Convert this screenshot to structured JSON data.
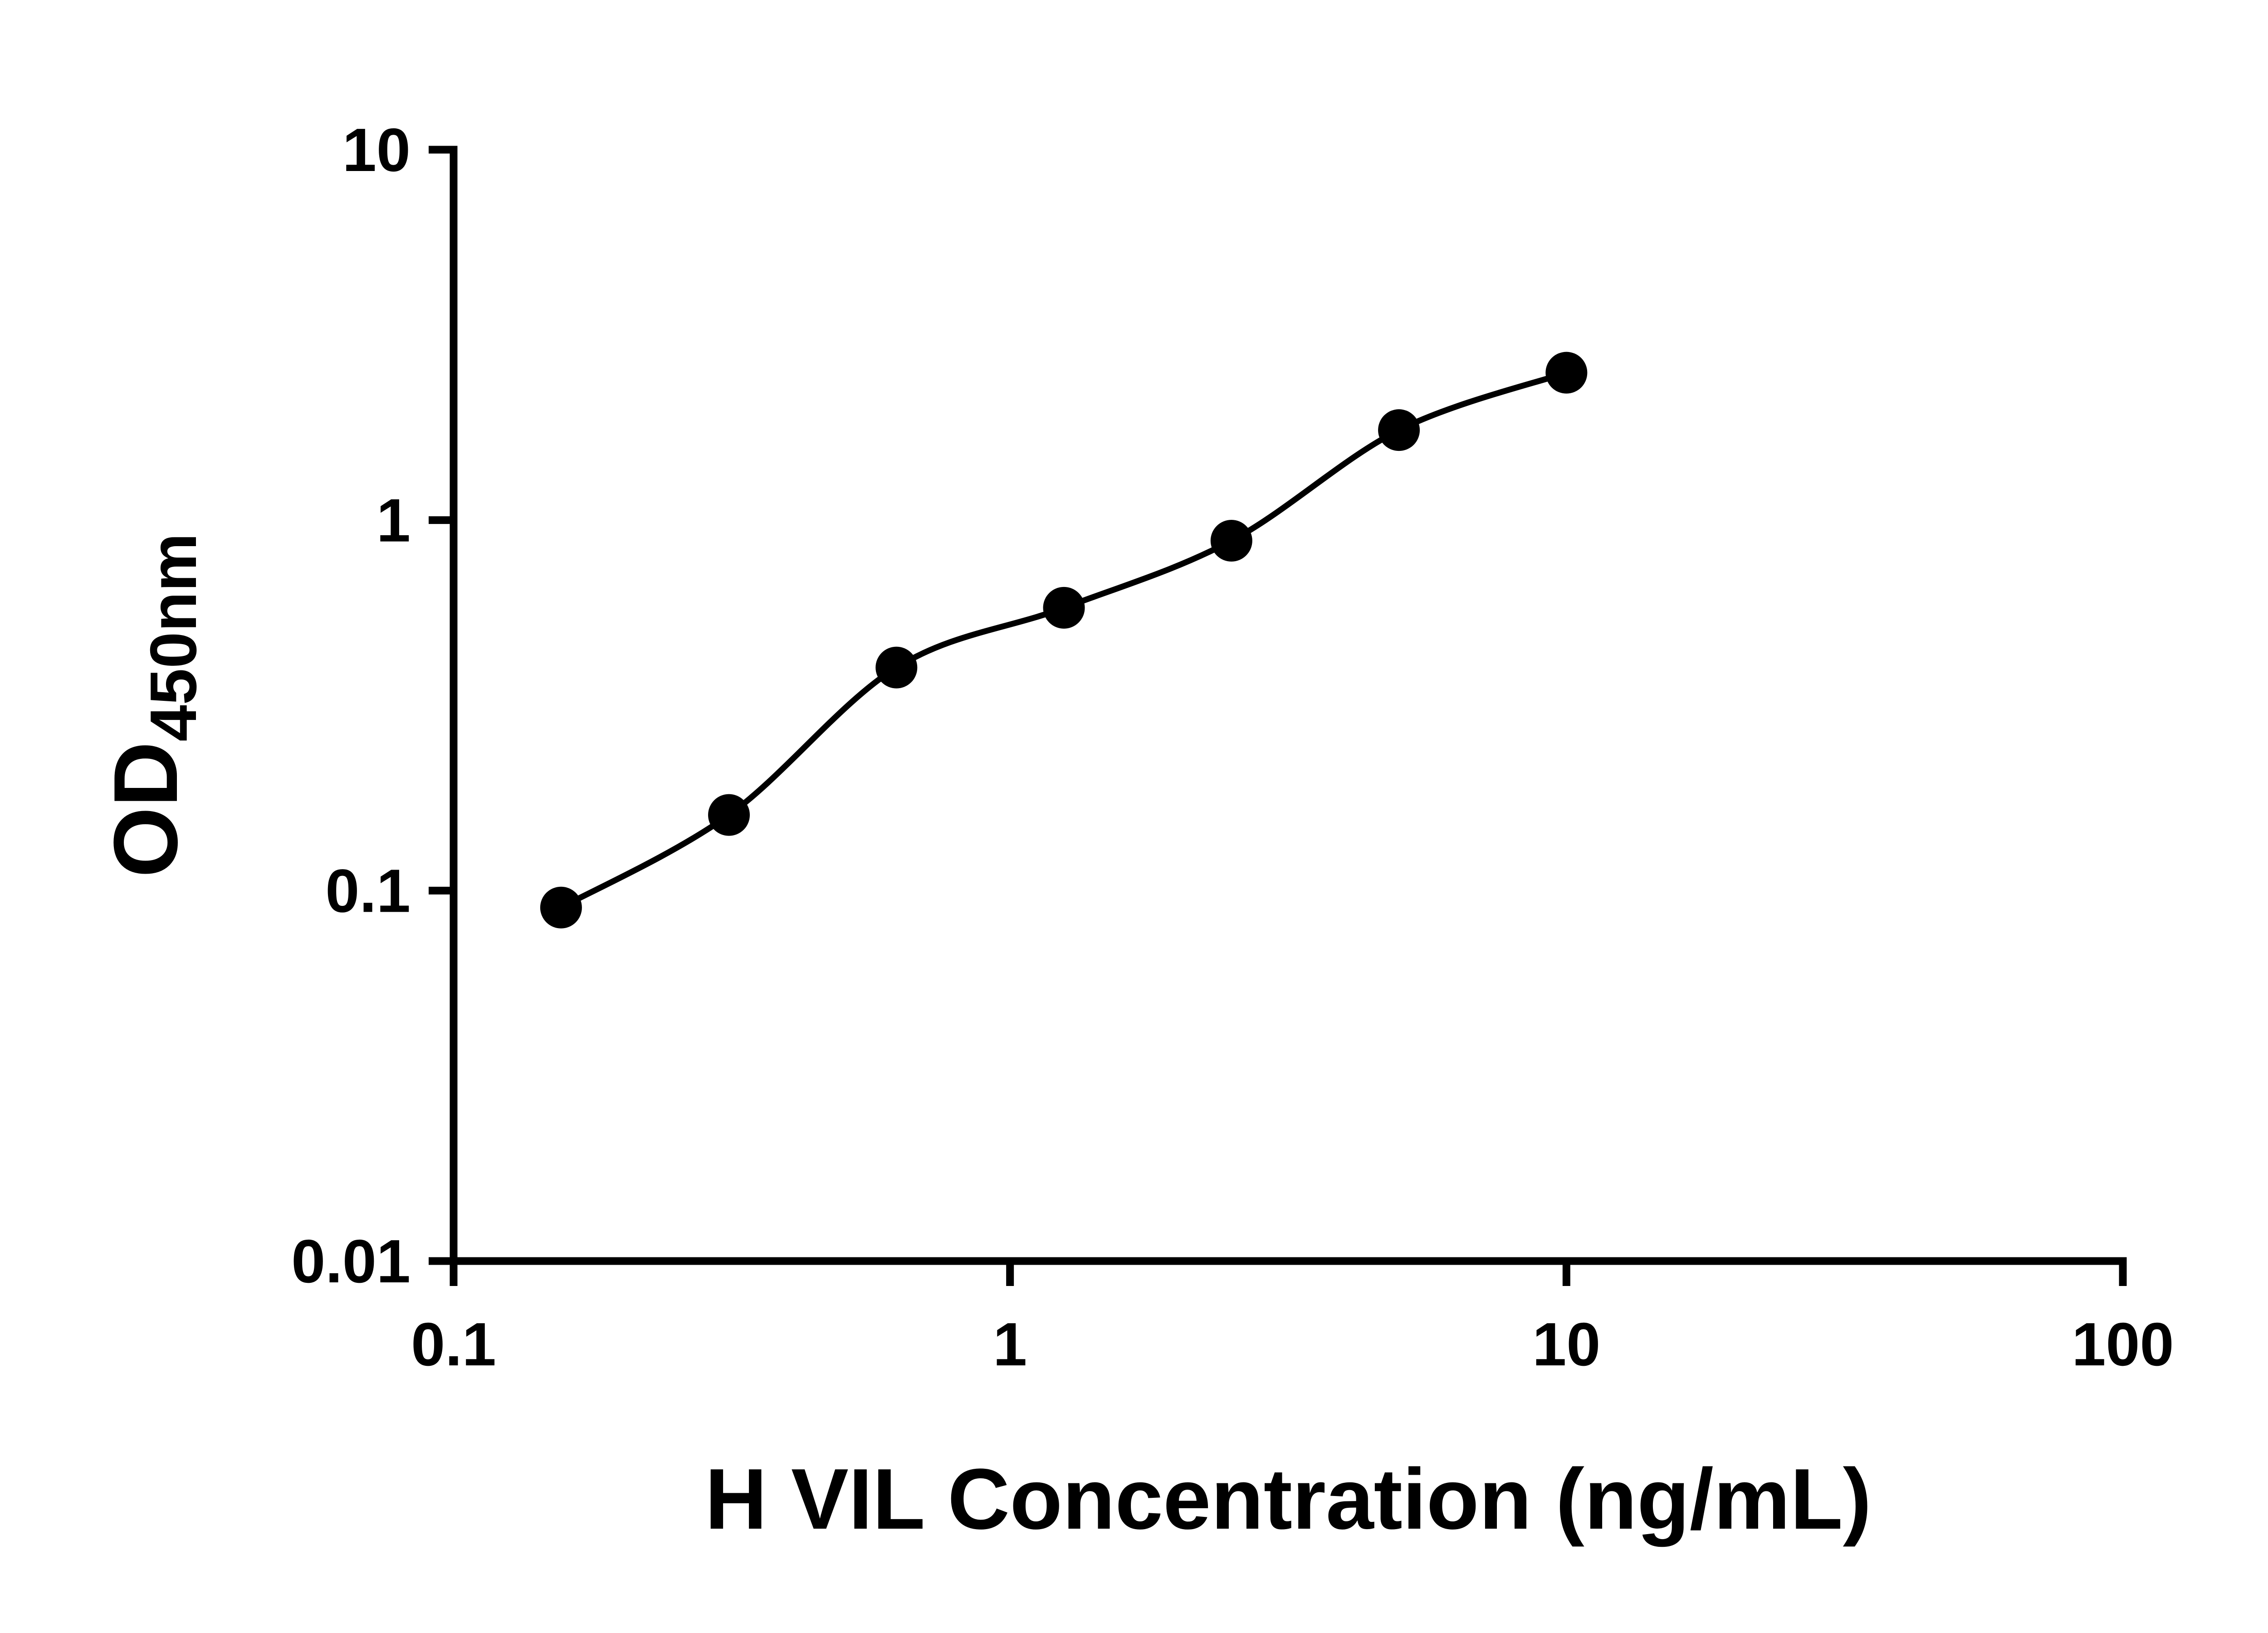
{
  "chart_data": {
    "type": "scatter",
    "curve": "smooth-line-through-points",
    "title": "",
    "xlabel": "H VIL Concentration (ng/mL)",
    "ylabel_main": "OD",
    "ylabel_sub": "450nm",
    "x_scale": "log",
    "y_scale": "log",
    "xlim": [
      0.1,
      100
    ],
    "ylim": [
      0.01,
      10
    ],
    "x_ticks": [
      0.1,
      1,
      10,
      100
    ],
    "x_tick_labels": [
      "0.1",
      "1",
      "10",
      "100"
    ],
    "y_ticks": [
      0.01,
      0.1,
      1,
      10
    ],
    "y_tick_labels": [
      "0.01",
      "0.1",
      "1",
      "10"
    ],
    "x": [
      0.156,
      0.3125,
      0.625,
      1.25,
      2.5,
      5,
      10
    ],
    "y": [
      0.09,
      0.16,
      0.4,
      0.58,
      0.88,
      1.75,
      2.5
    ],
    "grid": false,
    "legend": false,
    "marker_color": "#000000",
    "line_color": "#000000",
    "axis_color": "#000000",
    "background": "#ffffff"
  }
}
